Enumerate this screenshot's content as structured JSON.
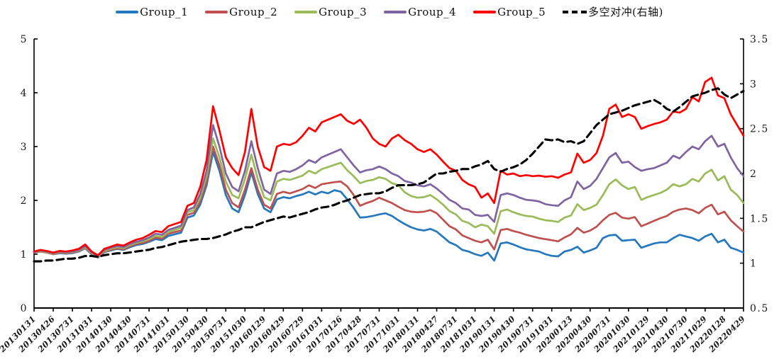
{
  "chart_data": {
    "type": "line",
    "title": "",
    "n_points": 112,
    "grid": false,
    "legend_position": "top",
    "x_tick_labels": [
      "20130131",
      "20130426",
      "20130731",
      "20131031",
      "20140130",
      "20140430",
      "20140731",
      "20141031",
      "20150130",
      "20150430",
      "20150731",
      "20151030",
      "20160129",
      "20160429",
      "20160729",
      "20161031",
      "20170126",
      "20170428",
      "20170731",
      "20171031",
      "20180131",
      "20180427",
      "20180731",
      "20181031",
      "20190131",
      "20190430",
      "20190731",
      "20191031",
      "20200123",
      "20200430",
      "20200731",
      "20201030",
      "20210129",
      "20210430",
      "20210730",
      "20211029",
      "20220128",
      "20220429"
    ],
    "x_tick_every_n_points": 3,
    "left_axis": {
      "min": 0,
      "max": 5,
      "ticks": [
        "0",
        "1",
        "2",
        "3",
        "4",
        "5"
      ]
    },
    "right_axis": {
      "min": 0.5,
      "max": 3.5,
      "ticks": [
        "0.5",
        "1",
        "1.5",
        "2",
        "2.5",
        "3",
        "3.5"
      ]
    },
    "series": [
      {
        "name": "Group_1",
        "color": "#2478BE",
        "axis": "left",
        "style": "solid",
        "values": [
          1.03,
          1.05,
          1.03,
          1.0,
          1.02,
          1.01,
          1.02,
          1.05,
          1.11,
          1.0,
          0.94,
          1.04,
          1.07,
          1.1,
          1.08,
          1.13,
          1.17,
          1.19,
          1.23,
          1.28,
          1.26,
          1.34,
          1.37,
          1.4,
          1.68,
          1.72,
          1.92,
          2.28,
          2.9,
          2.55,
          2.1,
          1.85,
          1.78,
          2.1,
          2.52,
          2.12,
          1.85,
          1.78,
          2.02,
          2.06,
          2.04,
          2.08,
          2.11,
          2.16,
          2.11,
          2.16,
          2.13,
          2.19,
          2.16,
          2.02,
          1.86,
          1.68,
          1.69,
          1.71,
          1.74,
          1.76,
          1.71,
          1.63,
          1.56,
          1.5,
          1.46,
          1.44,
          1.47,
          1.42,
          1.32,
          1.22,
          1.17,
          1.08,
          1.05,
          1.0,
          0.97,
          1.03,
          0.88,
          1.2,
          1.22,
          1.18,
          1.13,
          1.09,
          1.07,
          1.05,
          1.0,
          0.97,
          0.96,
          1.05,
          1.08,
          1.14,
          1.03,
          1.07,
          1.12,
          1.3,
          1.35,
          1.36,
          1.25,
          1.26,
          1.27,
          1.12,
          1.16,
          1.2,
          1.22,
          1.22,
          1.3,
          1.36,
          1.33,
          1.3,
          1.25,
          1.33,
          1.38,
          1.22,
          1.27,
          1.12,
          1.08,
          1.03
        ]
      },
      {
        "name": "Group_2",
        "color": "#C0504D",
        "axis": "left",
        "style": "solid",
        "values": [
          1.03,
          1.05,
          1.03,
          1.0,
          1.03,
          1.02,
          1.03,
          1.06,
          1.12,
          1.01,
          0.95,
          1.05,
          1.08,
          1.11,
          1.09,
          1.15,
          1.19,
          1.21,
          1.25,
          1.31,
          1.29,
          1.38,
          1.41,
          1.44,
          1.73,
          1.77,
          1.98,
          2.35,
          3.0,
          2.65,
          2.2,
          1.95,
          1.87,
          2.2,
          2.6,
          2.2,
          1.92,
          1.85,
          2.12,
          2.16,
          2.13,
          2.17,
          2.21,
          2.28,
          2.23,
          2.3,
          2.32,
          2.34,
          2.35,
          2.26,
          2.1,
          1.9,
          1.95,
          1.99,
          2.05,
          2.0,
          1.95,
          1.88,
          1.82,
          1.79,
          1.78,
          1.79,
          1.82,
          1.76,
          1.64,
          1.52,
          1.46,
          1.35,
          1.3,
          1.25,
          1.22,
          1.27,
          1.09,
          1.45,
          1.47,
          1.43,
          1.4,
          1.36,
          1.33,
          1.3,
          1.28,
          1.26,
          1.24,
          1.31,
          1.37,
          1.49,
          1.4,
          1.44,
          1.51,
          1.63,
          1.73,
          1.77,
          1.68,
          1.66,
          1.69,
          1.52,
          1.57,
          1.62,
          1.67,
          1.71,
          1.79,
          1.83,
          1.85,
          1.82,
          1.76,
          1.86,
          1.92,
          1.74,
          1.79,
          1.63,
          1.52,
          1.42
        ]
      },
      {
        "name": "Group_3",
        "color": "#9BBB59",
        "axis": "left",
        "style": "solid",
        "values": [
          1.04,
          1.06,
          1.04,
          1.01,
          1.04,
          1.03,
          1.04,
          1.07,
          1.13,
          1.02,
          0.96,
          1.06,
          1.1,
          1.13,
          1.11,
          1.17,
          1.21,
          1.24,
          1.28,
          1.34,
          1.32,
          1.41,
          1.45,
          1.49,
          1.78,
          1.82,
          2.05,
          2.45,
          3.15,
          2.8,
          2.35,
          2.1,
          2.04,
          2.4,
          2.85,
          2.4,
          2.06,
          2.0,
          2.35,
          2.4,
          2.38,
          2.42,
          2.46,
          2.55,
          2.5,
          2.58,
          2.62,
          2.66,
          2.7,
          2.56,
          2.45,
          2.32,
          2.36,
          2.38,
          2.43,
          2.4,
          2.32,
          2.28,
          2.15,
          2.08,
          2.05,
          2.06,
          2.1,
          2.02,
          1.92,
          1.8,
          1.74,
          1.62,
          1.58,
          1.5,
          1.55,
          1.52,
          1.38,
          1.8,
          1.83,
          1.78,
          1.74,
          1.71,
          1.7,
          1.66,
          1.63,
          1.62,
          1.6,
          1.68,
          1.72,
          1.93,
          1.82,
          1.86,
          1.92,
          2.1,
          2.3,
          2.39,
          2.28,
          2.21,
          2.25,
          2.01,
          2.06,
          2.1,
          2.14,
          2.2,
          2.3,
          2.26,
          2.3,
          2.4,
          2.35,
          2.5,
          2.57,
          2.37,
          2.45,
          2.2,
          2.1,
          1.95
        ]
      },
      {
        "name": "Group_4",
        "color": "#8064A2",
        "axis": "left",
        "style": "solid",
        "values": [
          1.04,
          1.07,
          1.05,
          1.02,
          1.05,
          1.04,
          1.05,
          1.08,
          1.15,
          1.03,
          0.97,
          1.08,
          1.12,
          1.15,
          1.13,
          1.19,
          1.23,
          1.26,
          1.31,
          1.38,
          1.36,
          1.45,
          1.49,
          1.53,
          1.82,
          1.87,
          2.12,
          2.55,
          3.4,
          3.0,
          2.5,
          2.25,
          2.17,
          2.55,
          3.1,
          2.6,
          2.2,
          2.12,
          2.5,
          2.55,
          2.53,
          2.58,
          2.65,
          2.75,
          2.7,
          2.8,
          2.85,
          2.9,
          2.95,
          2.8,
          2.65,
          2.52,
          2.56,
          2.58,
          2.63,
          2.58,
          2.5,
          2.45,
          2.36,
          2.33,
          2.28,
          2.26,
          2.3,
          2.22,
          2.12,
          2.01,
          1.95,
          1.85,
          1.83,
          1.73,
          1.71,
          1.73,
          1.6,
          2.1,
          2.13,
          2.1,
          2.05,
          2.01,
          2.0,
          1.98,
          1.93,
          1.91,
          1.9,
          2.0,
          2.06,
          2.35,
          2.21,
          2.27,
          2.4,
          2.6,
          2.8,
          2.88,
          2.7,
          2.72,
          2.62,
          2.55,
          2.58,
          2.6,
          2.65,
          2.7,
          2.83,
          2.78,
          2.9,
          3.0,
          2.95,
          3.1,
          3.2,
          3.0,
          3.05,
          2.8,
          2.6,
          2.45
        ]
      },
      {
        "name": "Group_5",
        "color": "#FF0000",
        "axis": "left",
        "style": "solid",
        "values": [
          1.05,
          1.08,
          1.06,
          1.03,
          1.06,
          1.05,
          1.07,
          1.1,
          1.18,
          1.05,
          0.98,
          1.1,
          1.14,
          1.18,
          1.16,
          1.22,
          1.27,
          1.3,
          1.36,
          1.43,
          1.41,
          1.52,
          1.56,
          1.6,
          1.9,
          1.95,
          2.25,
          2.75,
          3.75,
          3.3,
          2.8,
          2.6,
          2.47,
          2.9,
          3.7,
          3.0,
          2.62,
          2.55,
          3.0,
          3.05,
          3.03,
          3.08,
          3.2,
          3.35,
          3.28,
          3.45,
          3.5,
          3.55,
          3.6,
          3.48,
          3.42,
          3.5,
          3.35,
          3.15,
          3.05,
          3.0,
          3.15,
          3.22,
          3.12,
          3.05,
          2.95,
          2.9,
          2.95,
          2.85,
          2.72,
          2.6,
          2.55,
          2.38,
          2.3,
          2.25,
          2.05,
          2.13,
          1.95,
          2.55,
          2.48,
          2.5,
          2.45,
          2.47,
          2.45,
          2.46,
          2.44,
          2.45,
          2.42,
          2.48,
          2.52,
          2.87,
          2.7,
          2.75,
          2.88,
          3.2,
          3.7,
          3.78,
          3.55,
          3.6,
          3.55,
          3.33,
          3.38,
          3.42,
          3.45,
          3.5,
          3.65,
          3.63,
          3.7,
          3.92,
          3.84,
          4.2,
          4.28,
          3.95,
          3.9,
          3.6,
          3.4,
          3.2
        ]
      },
      {
        "name": "多空对冲(右轴)",
        "color": "#000000",
        "axis": "right",
        "style": "dashed",
        "values": [
          1.02,
          1.02,
          1.03,
          1.03,
          1.04,
          1.05,
          1.05,
          1.06,
          1.08,
          1.08,
          1.07,
          1.09,
          1.1,
          1.11,
          1.11,
          1.12,
          1.13,
          1.14,
          1.15,
          1.17,
          1.18,
          1.2,
          1.22,
          1.24,
          1.25,
          1.26,
          1.27,
          1.27,
          1.28,
          1.3,
          1.32,
          1.35,
          1.37,
          1.4,
          1.4,
          1.43,
          1.46,
          1.48,
          1.5,
          1.52,
          1.51,
          1.53,
          1.55,
          1.57,
          1.6,
          1.62,
          1.63,
          1.65,
          1.68,
          1.7,
          1.73,
          1.76,
          1.77,
          1.78,
          1.78,
          1.8,
          1.84,
          1.87,
          1.87,
          1.87,
          1.88,
          1.9,
          1.95,
          2.0,
          2.0,
          2.02,
          2.03,
          2.05,
          2.05,
          2.08,
          2.1,
          2.14,
          2.05,
          2.02,
          2.05,
          2.07,
          2.1,
          2.15,
          2.22,
          2.3,
          2.38,
          2.37,
          2.38,
          2.35,
          2.36,
          2.33,
          2.36,
          2.45,
          2.54,
          2.6,
          2.66,
          2.68,
          2.7,
          2.73,
          2.76,
          2.78,
          2.8,
          2.82,
          2.78,
          2.72,
          2.69,
          2.74,
          2.8,
          2.86,
          2.88,
          2.9,
          2.93,
          2.95,
          2.88,
          2.84,
          2.88,
          2.92
        ]
      }
    ]
  }
}
